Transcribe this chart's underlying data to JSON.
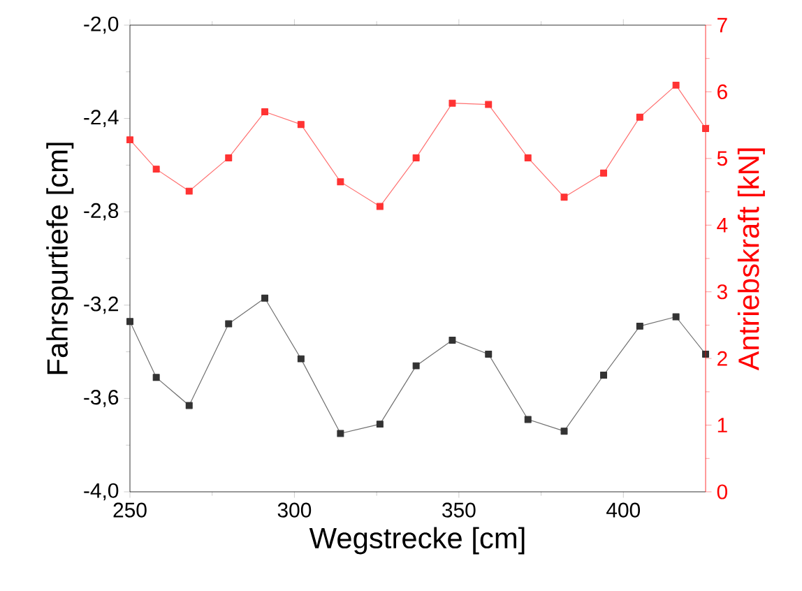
{
  "chart_data": {
    "type": "line",
    "xlabel": "Wegstrecke [cm]",
    "ylabel": "Fahrspurtiefe [cm]",
    "y2label": "Antriebskraft [kN]",
    "x": [
      250,
      258,
      268,
      280,
      291,
      302,
      314,
      326,
      337,
      348,
      359,
      371,
      382,
      394,
      405,
      416,
      425
    ],
    "series": [
      {
        "color": "#333333",
        "values": [
          -3.27,
          -3.51,
          -3.63,
          -3.28,
          -3.17,
          -3.43,
          -3.75,
          -3.71,
          -3.46,
          -3.35,
          -3.41,
          -3.69,
          -3.74,
          -3.5,
          -3.29,
          -3.25,
          -3.41
        ]
      },
      {
        "color": "#ff3333",
        "axis": "y2",
        "values": [
          5.28,
          4.84,
          4.51,
          5.01,
          5.7,
          5.51,
          4.65,
          4.28,
          5.01,
          5.83,
          5.81,
          5.01,
          4.42,
          4.78,
          5.62,
          6.1,
          5.45
        ]
      }
    ],
    "xlim": [
      250,
      425
    ],
    "xticks": [
      250,
      300,
      350,
      400
    ],
    "ylim": [
      -4.0,
      -2.0
    ],
    "yticks": [
      {
        "value": -4.0,
        "label": "-4,0"
      },
      {
        "value": -3.6,
        "label": "-3,6"
      },
      {
        "value": -3.2,
        "label": "-3,2"
      },
      {
        "value": -2.8,
        "label": "-2,8"
      },
      {
        "value": -2.4,
        "label": "-2,4"
      },
      {
        "value": -2.0,
        "label": "-2,0"
      }
    ],
    "y2lim": [
      0,
      7
    ],
    "y2ticks": [
      0,
      1,
      2,
      3,
      4,
      5,
      6,
      7
    ],
    "marker": "square",
    "grid": false
  }
}
